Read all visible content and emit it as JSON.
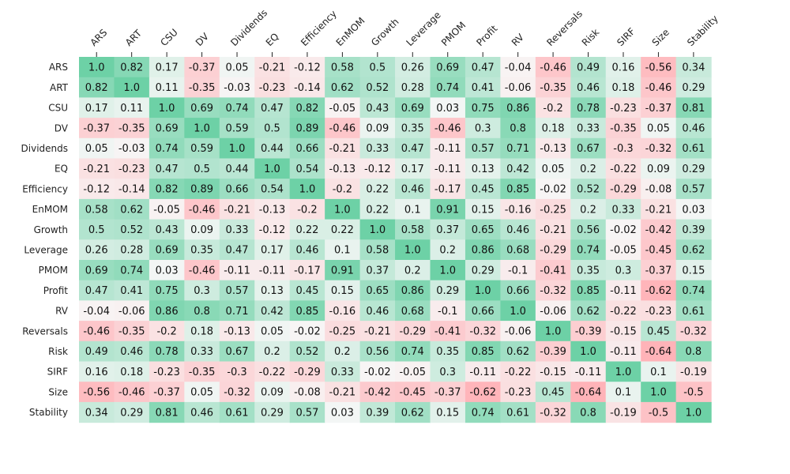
{
  "chart_data": {
    "type": "heatmap",
    "title": "",
    "xlabel": "",
    "ylabel": "",
    "labels": [
      "ARS",
      "ART",
      "CSU",
      "DV",
      "Dividends",
      "EQ",
      "Efficiency",
      "EnMOM",
      "Growth",
      "Leverage",
      "PMOM",
      "Profit",
      "RV",
      "Reversals",
      "Risk",
      "SIRF",
      "Size",
      "Stability"
    ],
    "values": [
      [
        1.0,
        0.82,
        0.17,
        -0.37,
        0.05,
        -0.21,
        -0.12,
        0.58,
        0.5,
        0.26,
        0.69,
        0.47,
        -0.04,
        -0.46,
        0.49,
        0.16,
        -0.56,
        0.34
      ],
      [
        0.82,
        1.0,
        0.11,
        -0.35,
        -0.03,
        -0.23,
        -0.14,
        0.62,
        0.52,
        0.28,
        0.74,
        0.41,
        -0.06,
        -0.35,
        0.46,
        0.18,
        -0.46,
        0.29
      ],
      [
        0.17,
        0.11,
        1.0,
        0.69,
        0.74,
        0.47,
        0.82,
        -0.05,
        0.43,
        0.69,
        0.03,
        0.75,
        0.86,
        -0.2,
        0.78,
        -0.23,
        -0.37,
        0.81
      ],
      [
        -0.37,
        -0.35,
        0.69,
        1.0,
        0.59,
        0.5,
        0.89,
        -0.46,
        0.09,
        0.35,
        -0.46,
        0.3,
        0.8,
        0.18,
        0.33,
        -0.35,
        0.05,
        0.46
      ],
      [
        0.05,
        -0.03,
        0.74,
        0.59,
        1.0,
        0.44,
        0.66,
        -0.21,
        0.33,
        0.47,
        -0.11,
        0.57,
        0.71,
        -0.13,
        0.67,
        -0.3,
        -0.32,
        0.61
      ],
      [
        -0.21,
        -0.23,
        0.47,
        0.5,
        0.44,
        1.0,
        0.54,
        -0.13,
        -0.12,
        0.17,
        -0.11,
        0.13,
        0.42,
        0.05,
        0.2,
        -0.22,
        0.09,
        0.29
      ],
      [
        -0.12,
        -0.14,
        0.82,
        0.89,
        0.66,
        0.54,
        1.0,
        -0.2,
        0.22,
        0.46,
        -0.17,
        0.45,
        0.85,
        -0.02,
        0.52,
        -0.29,
        -0.08,
        0.57
      ],
      [
        0.58,
        0.62,
        -0.05,
        -0.46,
        -0.21,
        -0.13,
        -0.2,
        1.0,
        0.22,
        0.1,
        0.91,
        0.15,
        -0.16,
        -0.25,
        0.2,
        0.33,
        -0.21,
        0.03
      ],
      [
        0.5,
        0.52,
        0.43,
        0.09,
        0.33,
        -0.12,
        0.22,
        0.22,
        1.0,
        0.58,
        0.37,
        0.65,
        0.46,
        -0.21,
        0.56,
        -0.02,
        -0.42,
        0.39
      ],
      [
        0.26,
        0.28,
        0.69,
        0.35,
        0.47,
        0.17,
        0.46,
        0.1,
        0.58,
        1.0,
        0.2,
        0.86,
        0.68,
        -0.29,
        0.74,
        -0.05,
        -0.45,
        0.62
      ],
      [
        0.69,
        0.74,
        0.03,
        -0.46,
        -0.11,
        -0.11,
        -0.17,
        0.91,
        0.37,
        0.2,
        1.0,
        0.29,
        -0.1,
        -0.41,
        0.35,
        0.3,
        -0.37,
        0.15
      ],
      [
        0.47,
        0.41,
        0.75,
        0.3,
        0.57,
        0.13,
        0.45,
        0.15,
        0.65,
        0.86,
        0.29,
        1.0,
        0.66,
        -0.32,
        0.85,
        -0.11,
        -0.62,
        0.74
      ],
      [
        -0.04,
        -0.06,
        0.86,
        0.8,
        0.71,
        0.42,
        0.85,
        -0.16,
        0.46,
        0.68,
        -0.1,
        0.66,
        1.0,
        -0.06,
        0.62,
        -0.22,
        -0.23,
        0.61
      ],
      [
        -0.46,
        -0.35,
        -0.2,
        0.18,
        -0.13,
        0.05,
        -0.02,
        -0.25,
        -0.21,
        -0.29,
        -0.41,
        -0.32,
        -0.06,
        1.0,
        -0.39,
        -0.15,
        0.45,
        -0.32
      ],
      [
        0.49,
        0.46,
        0.78,
        0.33,
        0.67,
        0.2,
        0.52,
        0.2,
        0.56,
        0.74,
        0.35,
        0.85,
        0.62,
        -0.39,
        1.0,
        -0.11,
        -0.64,
        0.8
      ],
      [
        0.16,
        0.18,
        -0.23,
        -0.35,
        -0.3,
        -0.22,
        -0.29,
        0.33,
        -0.02,
        -0.05,
        0.3,
        -0.11,
        -0.22,
        -0.15,
        -0.11,
        1.0,
        0.1,
        -0.19
      ],
      [
        -0.56,
        -0.46,
        -0.37,
        0.05,
        -0.32,
        0.09,
        -0.08,
        -0.21,
        -0.42,
        -0.45,
        -0.37,
        -0.62,
        -0.23,
        0.45,
        -0.64,
        0.1,
        1.0,
        -0.5
      ],
      [
        0.34,
        0.29,
        0.81,
        0.46,
        0.61,
        0.29,
        0.57,
        0.03,
        0.39,
        0.62,
        0.15,
        0.74,
        0.61,
        -0.32,
        0.8,
        -0.19,
        -0.5,
        1.0
      ]
    ],
    "value_display": [
      "1.0",
      "0.82",
      "0.17",
      "-0.37",
      "0.05",
      "-0.21",
      "-0.12",
      "0.58",
      "0.5",
      "0.26",
      "0.69",
      "0.47",
      "-0.04",
      "-0.46",
      "0.49",
      "0.16",
      "-0.56",
      "0.34"
    ],
    "colors": {
      "positive_max": "#6dd1a6",
      "neutral": "#f7f7f7",
      "negative_max": "#ffb3b8"
    },
    "grid": false,
    "legend": "none",
    "colorbar": false
  }
}
